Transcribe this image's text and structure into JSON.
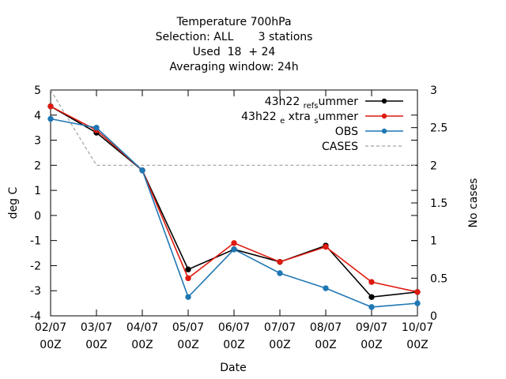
{
  "chart_data": {
    "type": "line",
    "title_lines": [
      "Temperature 700hPa",
      "Selection: ALL       3 stations",
      "Used  18  + 24",
      "Averaging window: 24h"
    ],
    "xlabel": "Date",
    "ylabel": "deg C",
    "y2label": "No cases",
    "x": [
      "02/07",
      "03/07",
      "04/07",
      "05/07",
      "06/07",
      "07/07",
      "08/07",
      "09/07",
      "10/07"
    ],
    "x_tick_labels": [
      [
        "02/07",
        "00Z"
      ],
      [
        "03/07",
        "00Z"
      ],
      [
        "04/07",
        "00Z"
      ],
      [
        "05/07",
        "00Z"
      ],
      [
        "06/07",
        "00Z"
      ],
      [
        "07/07",
        "00Z"
      ],
      [
        "08/07",
        "00Z"
      ],
      [
        "09/07",
        "00Z"
      ],
      [
        "10/07",
        "00Z"
      ]
    ],
    "ylim": [
      -4,
      5
    ],
    "yticks": [
      -4,
      -3,
      -2,
      -1,
      0,
      1,
      2,
      3,
      4,
      5
    ],
    "y2lim": [
      0,
      3
    ],
    "y2ticks": [
      "0",
      "0.5",
      "1",
      "1.5",
      "2",
      "2.5",
      "3"
    ],
    "grid": false,
    "legend_position": "top-right",
    "series": [
      {
        "legend_main": "43h22",
        "legend_sub1": "ref",
        "legend_sub2": "s",
        "legend_tail": "ummer",
        "color": "#000000",
        "axis": "y1",
        "style": "solid",
        "marker": true,
        "values": [
          4.35,
          3.3,
          1.8,
          -2.15,
          -1.35,
          -1.85,
          -1.2,
          -3.25,
          -3.05
        ]
      },
      {
        "legend_main": "43h22",
        "legend_sub1": "e",
        "legend_mid": "xtra",
        "legend_sub2": "s",
        "legend_tail": "ummer",
        "color": "#dd1a0f",
        "axis": "y1",
        "style": "solid",
        "marker": true,
        "values": [
          4.35,
          3.4,
          1.8,
          -2.5,
          -1.1,
          -1.85,
          -1.25,
          -2.65,
          -3.05
        ]
      },
      {
        "legend_main": "OBS",
        "color": "#1f77b4",
        "axis": "y1",
        "style": "solid",
        "marker": true,
        "values": [
          3.85,
          3.5,
          1.8,
          -3.25,
          -1.35,
          -2.3,
          -2.9,
          -3.65,
          -3.5
        ]
      },
      {
        "legend_main": "CASES",
        "color": "#a0a0a0",
        "axis": "y2",
        "style": "dashed",
        "marker": false,
        "values": [
          3,
          2,
          2,
          2,
          2,
          2,
          2,
          2,
          2
        ]
      }
    ]
  }
}
